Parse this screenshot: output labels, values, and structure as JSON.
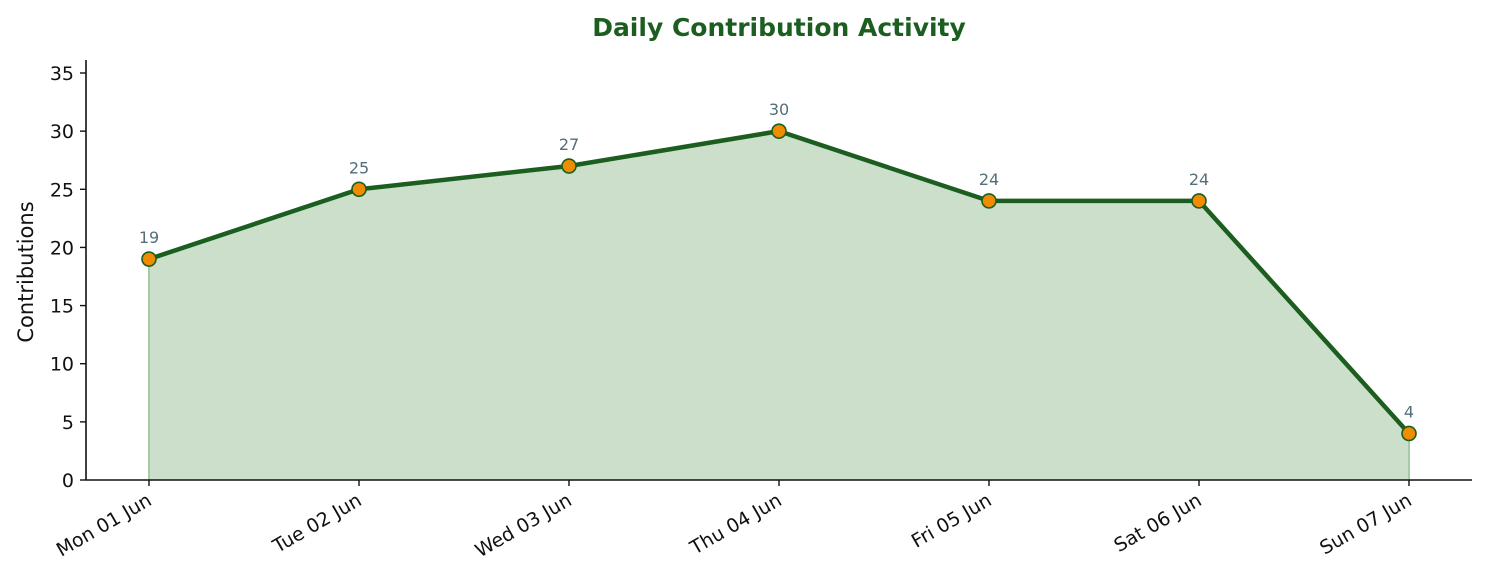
{
  "chart_data": {
    "type": "area",
    "title": "Daily Contribution Activity",
    "xlabel": "",
    "ylabel": "Contributions",
    "categories": [
      "Mon 01 Jun",
      "Tue 02 Jun",
      "Wed 03 Jun",
      "Thu 04 Jun",
      "Fri 05 Jun",
      "Sat 06 Jun",
      "Sun 07 Jun"
    ],
    "values": [
      19,
      25,
      27,
      30,
      24,
      24,
      4
    ],
    "data_labels": [
      "19",
      "25",
      "27",
      "30",
      "24",
      "24",
      "4"
    ],
    "ylim": [
      0,
      36
    ],
    "yticks": [
      0,
      5,
      10,
      15,
      20,
      25,
      30,
      35
    ],
    "ytick_labels": [
      "0",
      "5",
      "10",
      "15",
      "20",
      "25",
      "30",
      "35"
    ],
    "grid": false,
    "legend": "none",
    "colors": {
      "title": "#1b5e20",
      "line": "#1b5e20",
      "fill": "#cbdfcb",
      "fill_edge": "#a5cba5",
      "marker_fill": "#f08c00",
      "marker_edge": "#1b5e20",
      "data_label": "#546e7a",
      "axis": "#111111"
    }
  }
}
